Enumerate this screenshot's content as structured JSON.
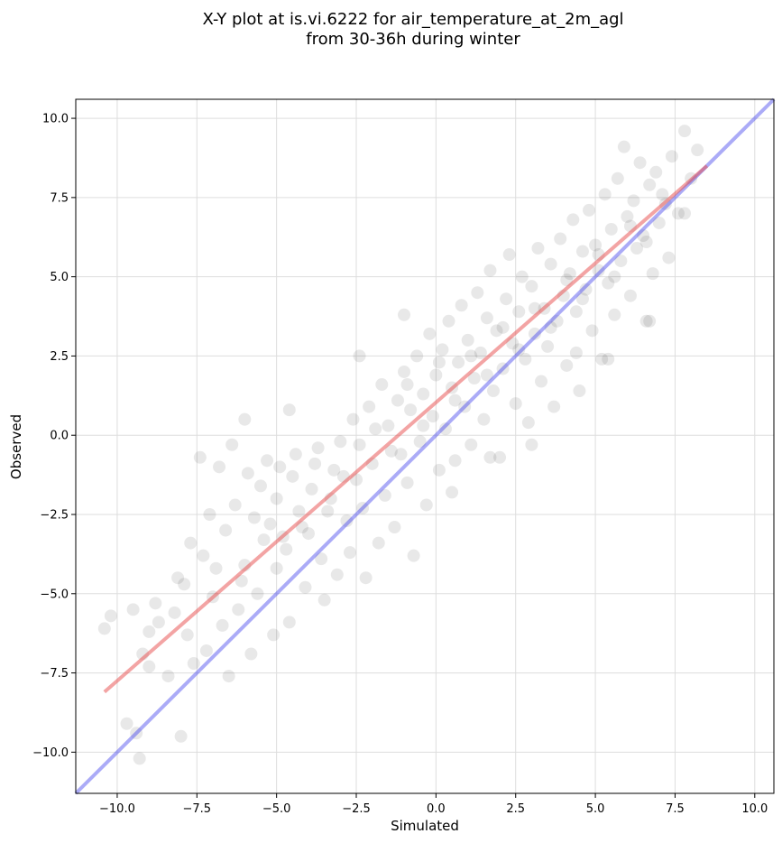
{
  "chart_data": {
    "type": "scatter",
    "title_lines": [
      "X-Y plot at is.vi.6222 for air_temperature_at_2m_agl",
      "from 30-36h during winter"
    ],
    "xlabel": "Simulated",
    "ylabel": "Observed",
    "xlim": [
      -11.3,
      10.6
    ],
    "ylim": [
      -11.3,
      10.6
    ],
    "x_ticks": [
      -10.0,
      -7.5,
      -5.0,
      -2.5,
      0.0,
      2.5,
      5.0,
      7.5,
      10.0
    ],
    "y_ticks": [
      -10.0,
      -7.5,
      -5.0,
      -2.5,
      0.0,
      2.5,
      5.0,
      7.5,
      10.0
    ],
    "tick_labels": [
      "−10.0",
      "−7.5",
      "−5.0",
      "−2.5",
      "0.0",
      "2.5",
      "5.0",
      "7.5",
      "10.0"
    ],
    "grid": true,
    "point_color": "#000000",
    "point_opacity": 0.09,
    "fit_line": {
      "x": [
        -10.4,
        8.5
      ],
      "y": [
        -8.1,
        8.5
      ],
      "color": "#e8494a"
    },
    "identity_line": {
      "x": [
        -11.3,
        10.6
      ],
      "y": [
        -11.3,
        10.6
      ],
      "color": "#4444ee"
    },
    "points": [
      [
        -10.4,
        -6.1
      ],
      [
        -10.2,
        -5.7
      ],
      [
        -9.7,
        -9.1
      ],
      [
        -9.5,
        -5.5
      ],
      [
        -9.4,
        -9.4
      ],
      [
        -9.3,
        -10.2
      ],
      [
        -9.2,
        -6.9
      ],
      [
        -9.0,
        -7.3
      ],
      [
        -9.0,
        -6.2
      ],
      [
        -8.7,
        -5.9
      ],
      [
        -8.4,
        -7.6
      ],
      [
        -8.2,
        -5.6
      ],
      [
        -8.0,
        -9.5
      ],
      [
        -7.9,
        -4.7
      ],
      [
        -7.8,
        -6.3
      ],
      [
        -7.6,
        -7.2
      ],
      [
        -7.4,
        -0.7
      ],
      [
        -7.3,
        -3.8
      ],
      [
        -7.2,
        -6.8
      ],
      [
        -7.0,
        -5.1
      ],
      [
        -6.8,
        -1.0
      ],
      [
        -6.7,
        -6.0
      ],
      [
        -6.5,
        -7.6
      ],
      [
        -6.4,
        -0.3
      ],
      [
        -6.2,
        -5.5
      ],
      [
        -6.0,
        -4.1
      ],
      [
        -5.9,
        -1.2
      ],
      [
        -5.8,
        -6.9
      ],
      [
        -5.6,
        -5.0
      ],
      [
        -5.5,
        -1.6
      ],
      [
        -5.4,
        -3.3
      ],
      [
        -5.2,
        -2.8
      ],
      [
        -5.1,
        -6.3
      ],
      [
        -5.0,
        -4.2
      ],
      [
        -4.9,
        -1.0
      ],
      [
        -4.7,
        -3.6
      ],
      [
        -4.6,
        -5.9
      ],
      [
        -4.4,
        -0.6
      ],
      [
        -4.3,
        -2.4
      ],
      [
        -4.1,
        -4.8
      ],
      [
        -4.0,
        -3.1
      ],
      [
        -3.9,
        -1.7
      ],
      [
        -3.7,
        -0.4
      ],
      [
        -3.6,
        -3.9
      ],
      [
        -3.5,
        -5.2
      ],
      [
        -3.3,
        -2.0
      ],
      [
        -3.2,
        -1.1
      ],
      [
        -3.1,
        -4.4
      ],
      [
        -3.0,
        -0.2
      ],
      [
        -2.8,
        -2.7
      ],
      [
        -2.7,
        -3.7
      ],
      [
        -2.6,
        0.5
      ],
      [
        -2.5,
        -1.4
      ],
      [
        -2.3,
        -2.3
      ],
      [
        -2.2,
        -4.5
      ],
      [
        -2.1,
        0.9
      ],
      [
        -2.0,
        -0.9
      ],
      [
        -1.8,
        -3.4
      ],
      [
        -1.7,
        1.6
      ],
      [
        -1.6,
        -1.9
      ],
      [
        -1.5,
        0.3
      ],
      [
        -1.3,
        -2.9
      ],
      [
        -1.2,
        1.1
      ],
      [
        -1.1,
        -0.6
      ],
      [
        -1.0,
        2.0
      ],
      [
        -0.9,
        -1.5
      ],
      [
        -0.8,
        0.8
      ],
      [
        -0.7,
        -3.8
      ],
      [
        -0.6,
        2.5
      ],
      [
        -0.5,
        -0.2
      ],
      [
        -0.4,
        1.3
      ],
      [
        -0.3,
        -2.2
      ],
      [
        -0.2,
        3.2
      ],
      [
        -0.1,
        0.6
      ],
      [
        0.0,
        1.9
      ],
      [
        0.1,
        -1.1
      ],
      [
        0.2,
        2.7
      ],
      [
        0.3,
        0.2
      ],
      [
        0.4,
        3.6
      ],
      [
        0.5,
        1.5
      ],
      [
        0.6,
        -0.8
      ],
      [
        0.7,
        2.3
      ],
      [
        0.8,
        4.1
      ],
      [
        0.9,
        0.9
      ],
      [
        1.0,
        3.0
      ],
      [
        1.1,
        -0.3
      ],
      [
        1.2,
        1.8
      ],
      [
        1.3,
        4.5
      ],
      [
        1.4,
        2.6
      ],
      [
        1.5,
        0.5
      ],
      [
        1.6,
        3.7
      ],
      [
        1.7,
        5.2
      ],
      [
        1.8,
        1.4
      ],
      [
        1.9,
        3.3
      ],
      [
        2.0,
        -0.7
      ],
      [
        2.1,
        2.1
      ],
      [
        2.2,
        4.3
      ],
      [
        2.3,
        5.7
      ],
      [
        2.4,
        2.9
      ],
      [
        2.5,
        1.0
      ],
      [
        2.6,
        3.9
      ],
      [
        2.7,
        5.0
      ],
      [
        2.8,
        2.4
      ],
      [
        2.9,
        0.4
      ],
      [
        3.0,
        4.7
      ],
      [
        3.1,
        3.2
      ],
      [
        3.2,
        5.9
      ],
      [
        3.3,
        1.7
      ],
      [
        3.4,
        4.0
      ],
      [
        3.5,
        2.8
      ],
      [
        3.6,
        5.4
      ],
      [
        3.7,
        0.9
      ],
      [
        3.8,
        3.6
      ],
      [
        3.9,
        6.2
      ],
      [
        4.0,
        4.4
      ],
      [
        4.1,
        2.2
      ],
      [
        4.2,
        5.1
      ],
      [
        4.3,
        6.8
      ],
      [
        4.4,
        3.9
      ],
      [
        4.5,
        1.4
      ],
      [
        4.6,
        5.8
      ],
      [
        4.7,
        4.6
      ],
      [
        4.8,
        7.1
      ],
      [
        4.9,
        3.3
      ],
      [
        5.0,
        6.0
      ],
      [
        5.1,
        5.2
      ],
      [
        5.2,
        2.4
      ],
      [
        5.3,
        7.6
      ],
      [
        5.4,
        4.8
      ],
      [
        5.5,
        6.5
      ],
      [
        5.6,
        3.8
      ],
      [
        5.7,
        8.1
      ],
      [
        5.8,
        5.5
      ],
      [
        5.9,
        9.1
      ],
      [
        6.0,
        6.9
      ],
      [
        6.1,
        4.4
      ],
      [
        6.2,
        7.4
      ],
      [
        6.3,
        5.9
      ],
      [
        6.4,
        8.6
      ],
      [
        6.5,
        6.3
      ],
      [
        6.6,
        3.6
      ],
      [
        6.7,
        7.9
      ],
      [
        6.8,
        5.1
      ],
      [
        6.9,
        8.3
      ],
      [
        7.0,
        6.7
      ],
      [
        7.2,
        7.3
      ],
      [
        7.4,
        8.8
      ],
      [
        7.6,
        7.0
      ],
      [
        7.8,
        9.6
      ],
      [
        8.0,
        8.1
      ],
      [
        8.2,
        9.0
      ],
      [
        7.3,
        5.6
      ],
      [
        -8.8,
        -5.3
      ],
      [
        -8.1,
        -4.5
      ],
      [
        -7.7,
        -3.4
      ],
      [
        -7.1,
        -2.5
      ],
      [
        -6.9,
        -4.2
      ],
      [
        -6.6,
        -3.0
      ],
      [
        -6.3,
        -2.2
      ],
      [
        -6.1,
        -4.6
      ],
      [
        -5.7,
        -2.6
      ],
      [
        -5.3,
        -0.8
      ],
      [
        -5.0,
        -2.0
      ],
      [
        -4.8,
        -3.2
      ],
      [
        -4.5,
        -1.3
      ],
      [
        -4.2,
        -2.9
      ],
      [
        -3.8,
        -0.9
      ],
      [
        -3.4,
        -2.4
      ],
      [
        -2.9,
        -1.3
      ],
      [
        -2.4,
        -0.3
      ],
      [
        -1.9,
        0.2
      ],
      [
        -1.4,
        -0.5
      ],
      [
        -0.9,
        1.6
      ],
      [
        -0.4,
        0.3
      ],
      [
        0.1,
        2.3
      ],
      [
        0.6,
        1.1
      ],
      [
        1.1,
        2.5
      ],
      [
        1.6,
        1.9
      ],
      [
        2.1,
        3.4
      ],
      [
        2.6,
        2.7
      ],
      [
        3.1,
        4.0
      ],
      [
        3.6,
        3.4
      ],
      [
        4.1,
        4.9
      ],
      [
        4.6,
        4.3
      ],
      [
        5.1,
        5.7
      ],
      [
        5.6,
        5.0
      ],
      [
        6.1,
        6.6
      ],
      [
        6.6,
        6.1
      ],
      [
        7.1,
        7.6
      ],
      [
        -6.0,
        0.5
      ],
      [
        -4.6,
        0.8
      ],
      [
        -2.4,
        2.5
      ],
      [
        -1.0,
        3.8
      ],
      [
        0.5,
        -1.8
      ],
      [
        1.7,
        -0.7
      ],
      [
        3.0,
        -0.3
      ],
      [
        4.4,
        2.6
      ],
      [
        5.4,
        2.4
      ],
      [
        6.7,
        3.6
      ],
      [
        7.8,
        7.0
      ]
    ]
  }
}
